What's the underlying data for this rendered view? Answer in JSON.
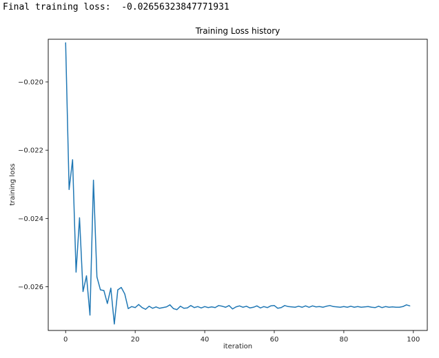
{
  "output": {
    "label": "Final training loss:",
    "value": "-0.02656323847771931"
  },
  "chart_data": {
    "type": "line",
    "title": "Training Loss history",
    "xlabel": "iteration",
    "ylabel": "training loss",
    "xlim": [
      -5,
      104
    ],
    "ylim": [
      -0.02728,
      -0.01875
    ],
    "xticks": [
      0,
      20,
      40,
      60,
      80,
      100
    ],
    "yticks": [
      -0.02,
      -0.022,
      -0.024,
      -0.026
    ],
    "xtick_labels": [
      "0",
      "20",
      "40",
      "60",
      "80",
      "100"
    ],
    "ytick_labels": [
      "−0.020",
      "−0.022",
      "−0.024",
      "−0.026"
    ],
    "grid": false,
    "line_color": "#1f77b4",
    "series": [
      {
        "x": [
          0,
          1,
          2,
          3,
          4,
          5,
          6,
          7,
          8,
          9,
          10,
          11,
          12,
          13,
          14,
          15,
          16,
          17,
          18,
          19,
          20,
          21,
          22,
          23,
          24,
          25,
          26,
          27,
          28,
          29,
          30,
          31,
          32,
          33,
          34,
          35,
          36,
          37,
          38,
          39,
          40,
          41,
          42,
          43,
          44,
          45,
          46,
          47,
          48,
          49,
          50,
          51,
          52,
          53,
          54,
          55,
          56,
          57,
          58,
          59,
          60,
          61,
          62,
          63,
          64,
          65,
          66,
          67,
          68,
          69,
          70,
          71,
          72,
          73,
          74,
          75,
          76,
          77,
          78,
          79,
          80,
          81,
          82,
          83,
          84,
          85,
          86,
          87,
          88,
          89,
          90,
          91,
          92,
          93,
          94,
          95,
          96,
          97,
          98,
          99
        ],
        "values": [
          -0.01885,
          -0.02315,
          -0.02228,
          -0.02557,
          -0.02398,
          -0.02614,
          -0.02568,
          -0.02683,
          -0.02288,
          -0.02571,
          -0.02609,
          -0.02611,
          -0.02649,
          -0.02604,
          -0.02709,
          -0.02609,
          -0.02602,
          -0.02621,
          -0.02664,
          -0.02658,
          -0.02661,
          -0.02652,
          -0.02661,
          -0.02666,
          -0.02657,
          -0.02663,
          -0.02659,
          -0.02663,
          -0.02661,
          -0.02659,
          -0.02653,
          -0.02664,
          -0.02667,
          -0.02657,
          -0.02663,
          -0.02662,
          -0.02655,
          -0.02661,
          -0.02658,
          -0.02662,
          -0.02658,
          -0.02661,
          -0.02659,
          -0.02661,
          -0.02655,
          -0.02657,
          -0.0266,
          -0.02655,
          -0.02665,
          -0.02659,
          -0.02656,
          -0.0266,
          -0.02657,
          -0.02662,
          -0.0266,
          -0.02656,
          -0.02662,
          -0.02658,
          -0.02661,
          -0.02656,
          -0.02655,
          -0.02663,
          -0.02661,
          -0.02655,
          -0.02658,
          -0.02659,
          -0.0266,
          -0.02657,
          -0.0266,
          -0.02656,
          -0.0266,
          -0.02656,
          -0.02659,
          -0.02658,
          -0.0266,
          -0.02657,
          -0.02655,
          -0.02658,
          -0.02659,
          -0.0266,
          -0.02658,
          -0.0266,
          -0.02657,
          -0.0266,
          -0.02658,
          -0.0266,
          -0.02659,
          -0.02658,
          -0.0266,
          -0.02661,
          -0.02657,
          -0.02661,
          -0.02658,
          -0.0266,
          -0.02659,
          -0.0266,
          -0.0266,
          -0.02658,
          -0.02653,
          -0.02656
        ]
      }
    ]
  }
}
